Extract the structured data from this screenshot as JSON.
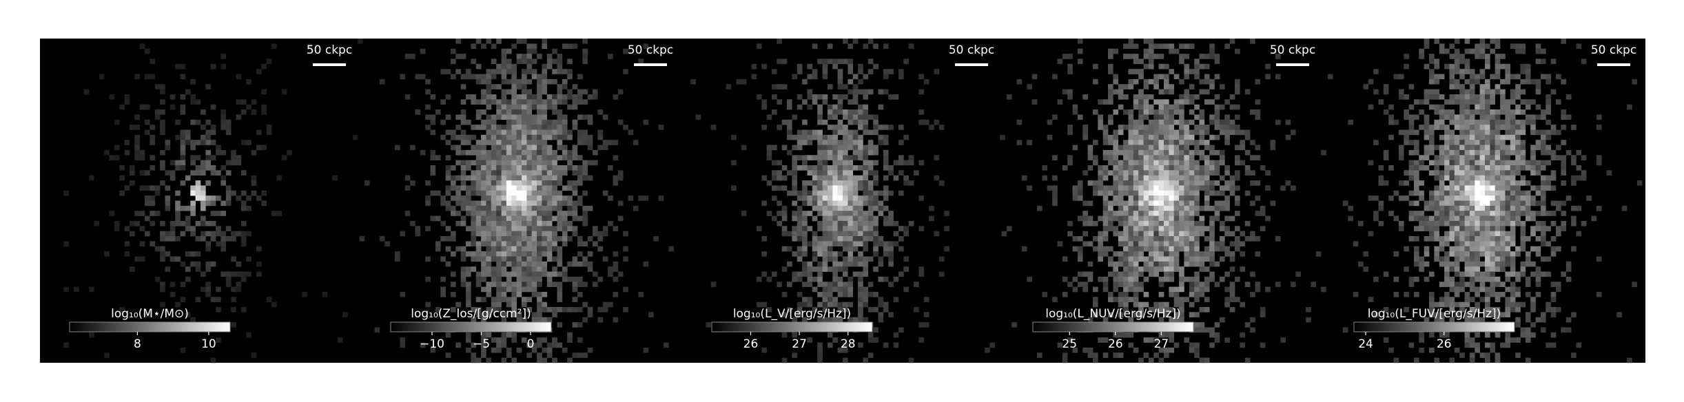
{
  "panels": [
    {
      "scalebar_label": "50 ckpc",
      "colorbar": {
        "label": "log₁₀(M⋆/M⊙)",
        "lim": [
          6.1,
          10.6
        ],
        "ticks": [
          8,
          10
        ]
      }
    },
    {
      "scalebar_label": "50 ckpc",
      "colorbar": {
        "label": "log₁₀(Z_los/[g/ccm²])",
        "lim": [
          -14.2,
          2.1
        ],
        "ticks": [
          {
            "value": -10,
            "label": "−10"
          },
          {
            "value": -5,
            "label": "−5"
          },
          0
        ]
      }
    },
    {
      "scalebar_label": "50 ckpc",
      "colorbar": {
        "label": "log₁₀(L_V/[erg/s/Hz])",
        "lim": [
          25.2,
          28.5
        ],
        "ticks": [
          26,
          27,
          28
        ]
      }
    },
    {
      "scalebar_label": "50 ckpc",
      "colorbar": {
        "label": "log₁₀(L_NUV/[erg/s/Hz])",
        "lim": [
          24.2,
          27.7
        ],
        "ticks": [
          25,
          26,
          27
        ]
      }
    },
    {
      "scalebar_label": "50 ckpc",
      "colorbar": {
        "label": "log₁₀(L_FUV/[erg/s/Hz])",
        "lim": [
          23.7,
          27.8
        ],
        "ticks": [
          24,
          26
        ]
      }
    }
  ]
}
